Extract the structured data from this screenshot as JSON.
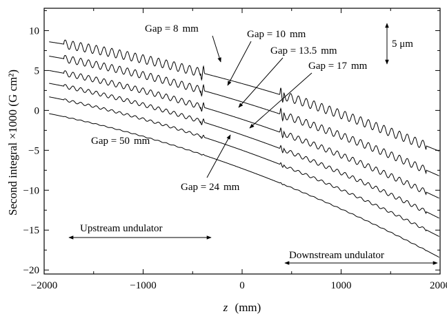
{
  "chart_data": {
    "type": "line",
    "xlabel": "z (mm)",
    "xlabel_var": "z",
    "xlabel_unit": "(mm)",
    "ylabel": "Second integral ×1000 (G cm²)",
    "xlim": [
      -2000,
      2000
    ],
    "ylim": [
      -20.5,
      12.8
    ],
    "x_ticks": [
      -2000,
      -1000,
      0,
      1000,
      2000
    ],
    "x_tick_labels": [
      "−2000",
      "−1000",
      "0",
      "1000",
      "2000"
    ],
    "y_ticks": [
      -20,
      -15,
      -10,
      -5,
      0,
      5,
      10
    ],
    "y_tick_labels": [
      "−20",
      "−15",
      "−10",
      "−5",
      "0",
      "5",
      "10"
    ],
    "grid": false,
    "scale_bar": {
      "label": "5 μm"
    },
    "region_markers": [
      {
        "label": "Upstream undulator",
        "x_range": [
          -1950,
          -400
        ]
      },
      {
        "label": "Downstream undulator",
        "x_range": [
          400,
          1990
        ]
      }
    ],
    "series": [
      {
        "label": "Gap = 8 mm",
        "start": 8.6,
        "end": -5.1,
        "oscillation": 0.55
      },
      {
        "label": "Gap = 10 mm",
        "start": 6.8,
        "end": -8.2,
        "oscillation": 0.45
      },
      {
        "label": "Gap = 13.5 mm",
        "start": 5.0,
        "end": -11.0,
        "oscillation": 0.35
      },
      {
        "label": "Gap = 17 mm",
        "start": 3.4,
        "end": -13.5,
        "oscillation": 0.25
      },
      {
        "label": "Gap = 24 mm",
        "start": 1.7,
        "end": -15.8,
        "oscillation": 0.15
      },
      {
        "label": "Gap = 50 mm",
        "start": -0.4,
        "end": -18.4,
        "oscillation": 0.05
      }
    ],
    "annotations": [
      {
        "text_prefix": "Gap",
        "text_value": "8",
        "text_unit": "mm"
      },
      {
        "text_prefix": "Gap",
        "text_value": "10",
        "text_unit": "mm"
      },
      {
        "text_prefix": "Gap",
        "text_value": "13.5",
        "text_unit": "mm"
      },
      {
        "text_prefix": "Gap",
        "text_value": "17",
        "text_unit": "mm"
      },
      {
        "text_prefix": "Gap",
        "text_value": "50",
        "text_unit": "mm"
      },
      {
        "text_prefix": "Gap",
        "text_value": "24",
        "text_unit": "mm"
      }
    ]
  }
}
